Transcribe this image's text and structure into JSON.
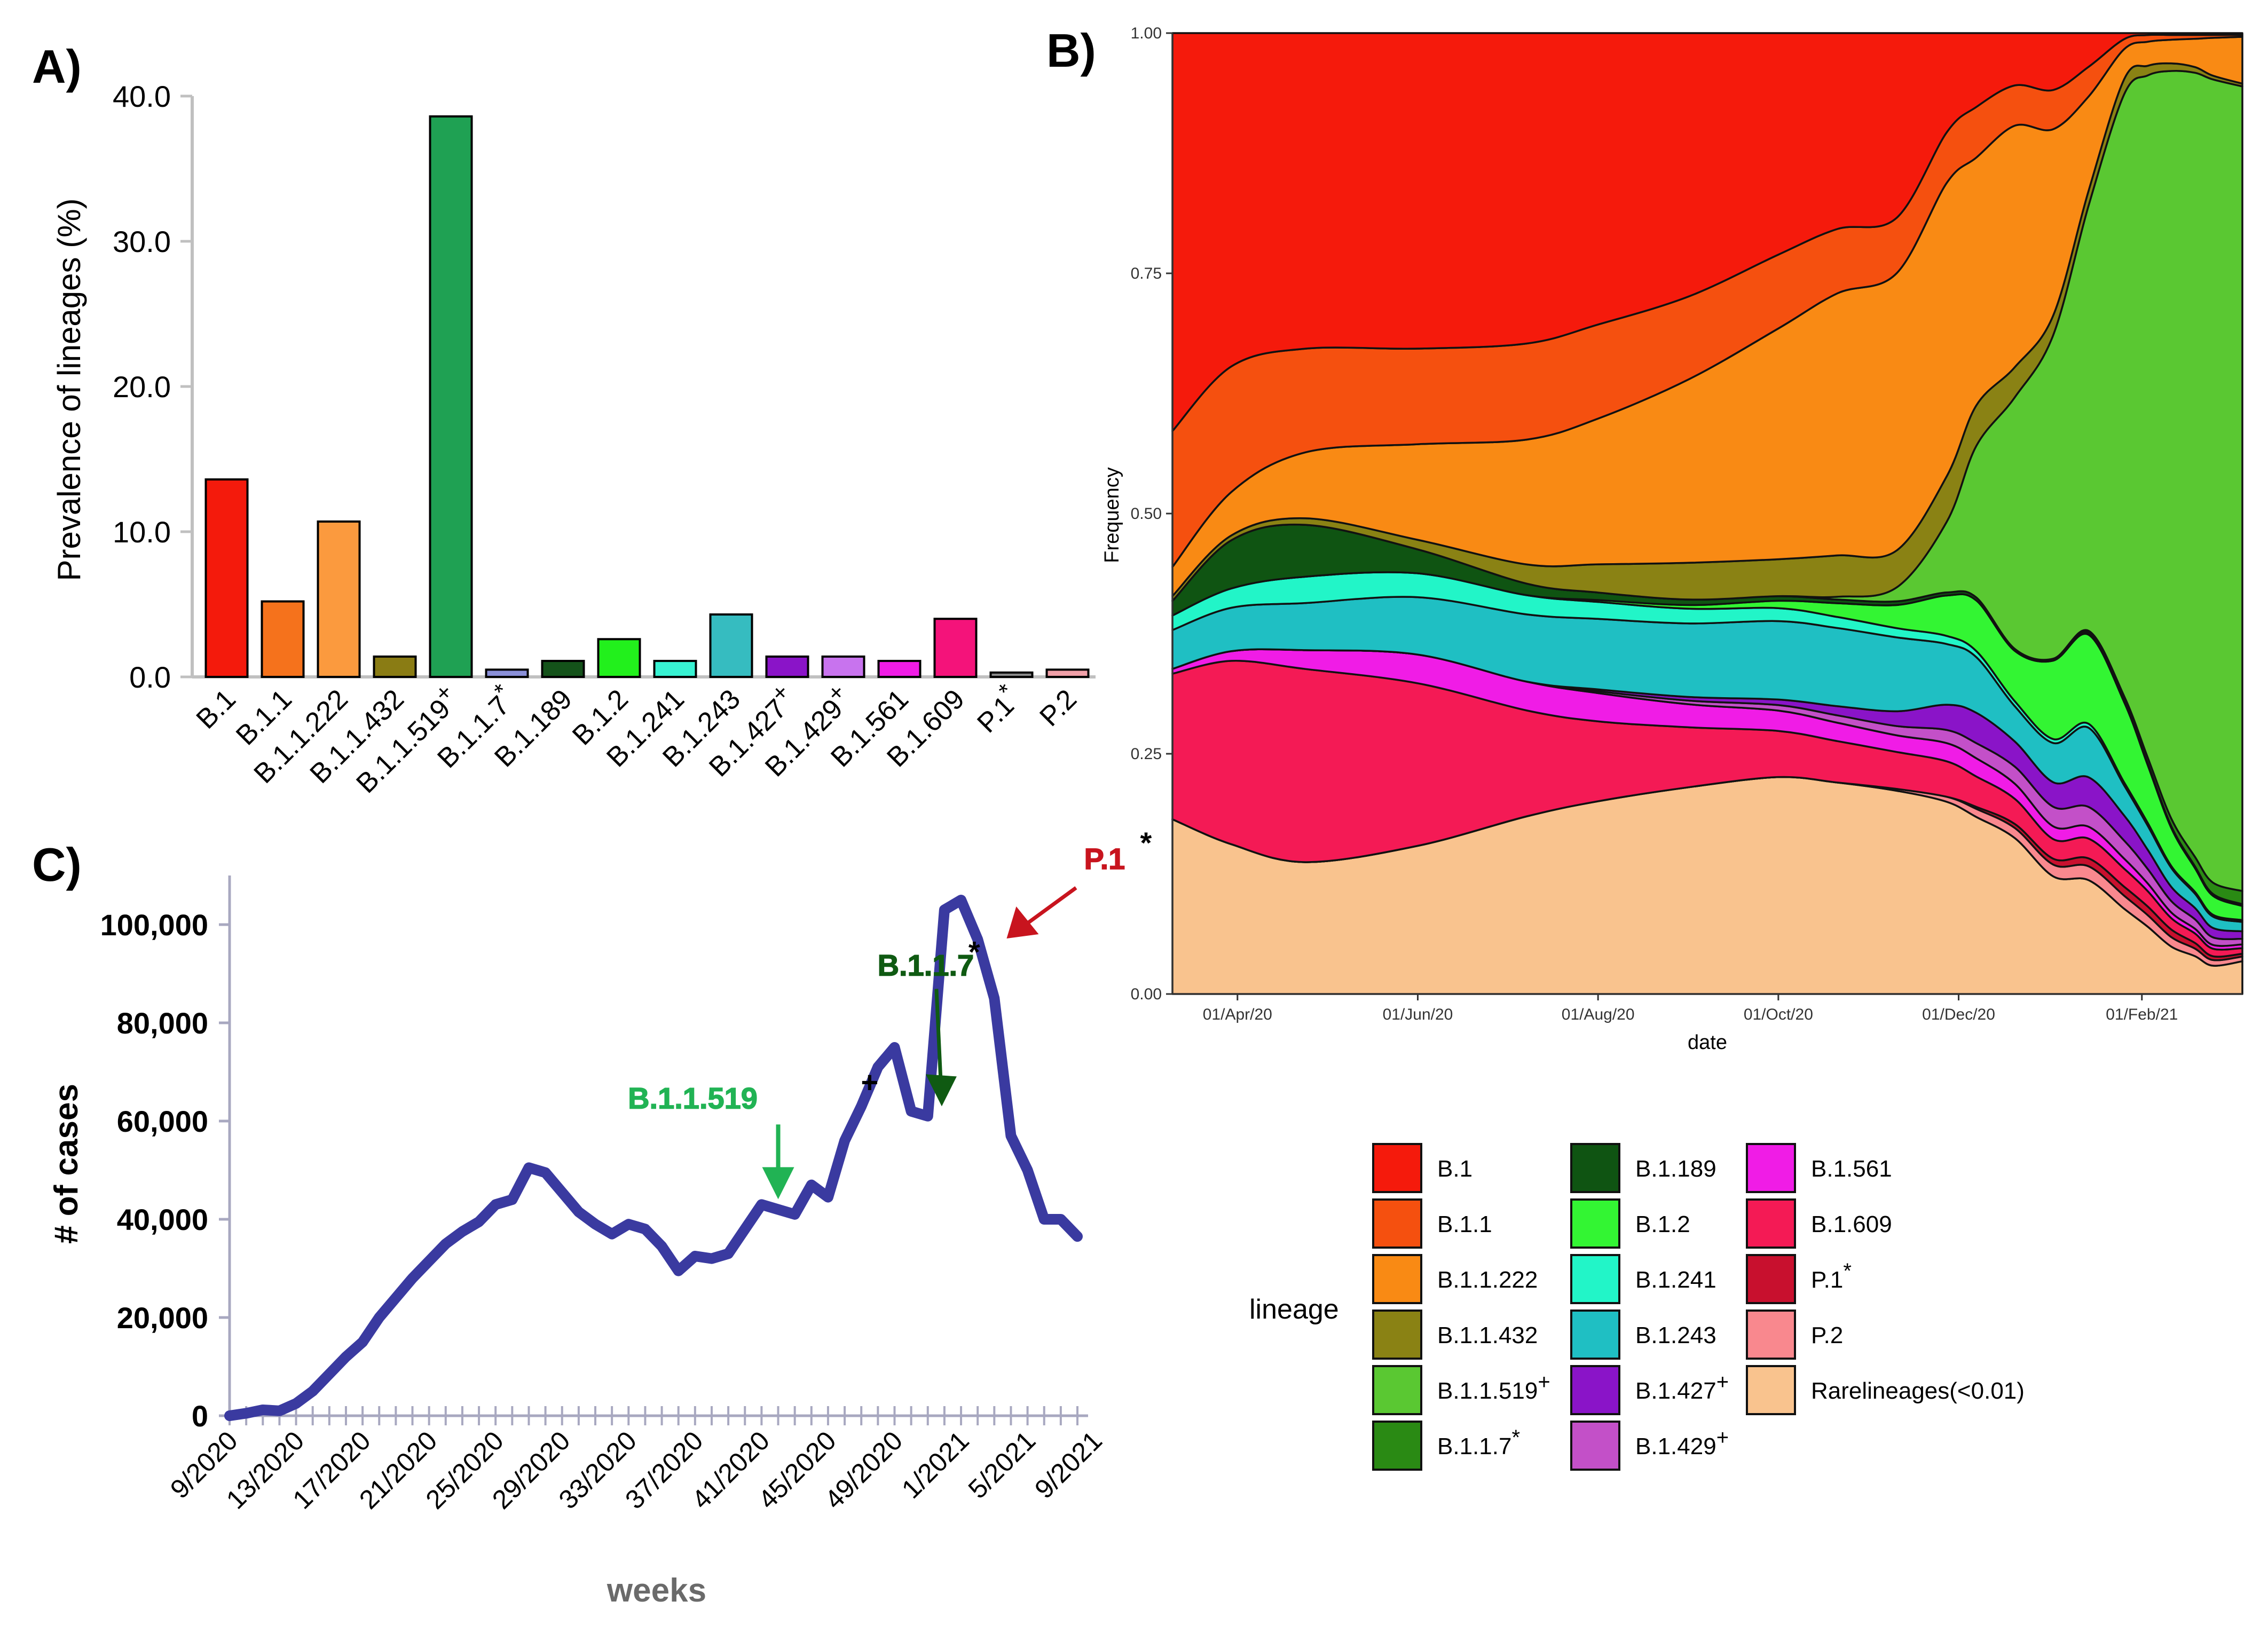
{
  "chart_data": [
    {
      "panel": "A)",
      "type": "bar",
      "ylabel": "Prevalence of lineages (%)",
      "ylim": [
        0,
        40
      ],
      "yticks": [
        "0.0",
        "10.0",
        "20.0",
        "30.0",
        "40.0"
      ],
      "categories": [
        {
          "name": "B.1",
          "mark": ""
        },
        {
          "name": "B.1.1",
          "mark": ""
        },
        {
          "name": "B.1.1.222",
          "mark": ""
        },
        {
          "name": "B.1.1.432",
          "mark": ""
        },
        {
          "name": "B.1.1.519",
          "mark": "+"
        },
        {
          "name": "B.1.1.7",
          "mark": "*"
        },
        {
          "name": "B.1.189",
          "mark": ""
        },
        {
          "name": "B.1.2",
          "mark": ""
        },
        {
          "name": "B.1.241",
          "mark": ""
        },
        {
          "name": "B.1.243",
          "mark": ""
        },
        {
          "name": "B.1.427",
          "mark": "+"
        },
        {
          "name": "B.1.429",
          "mark": "+"
        },
        {
          "name": "B.1.561",
          "mark": ""
        },
        {
          "name": "B.1.609",
          "mark": ""
        },
        {
          "name": "P.1",
          "mark": "*"
        },
        {
          "name": "P.2",
          "mark": ""
        }
      ],
      "values": [
        13.6,
        5.2,
        10.7,
        1.4,
        38.6,
        0.5,
        1.1,
        2.6,
        1.1,
        4.3,
        1.4,
        1.4,
        1.1,
        4.0,
        0.3,
        0.5
      ],
      "colors": [
        "#f41a0c",
        "#f5721c",
        "#fb9a3e",
        "#8a7c14",
        "#1fa153",
        "#8a8fd8",
        "#14521a",
        "#22f01c",
        "#38f2d2",
        "#36bcc0",
        "#8a14c8",
        "#c873ee",
        "#f01ce6",
        "#f4137a",
        "#8a8a8a",
        "#f0a0a8"
      ]
    },
    {
      "panel": "B)",
      "type": "area",
      "stacked": true,
      "xlabel": "date",
      "ylabel": "Frequency",
      "ylim": [
        0,
        1
      ],
      "yticks": [
        "0.00",
        "0.25",
        "0.50",
        "0.75",
        "1.00"
      ],
      "xticks": [
        "01/Apr/20",
        "01/Jun/20",
        "01/Aug/20",
        "01/Oct/20",
        "01/Dec/20",
        "01/Feb/21"
      ],
      "xtick_days": [
        22,
        83,
        144,
        205,
        266,
        328
      ],
      "x_days": [
        0,
        20,
        45,
        83,
        120,
        144,
        175,
        205,
        225,
        245,
        262,
        272,
        285,
        298,
        310,
        322,
        330,
        338,
        346,
        352,
        362
      ],
      "series": [
        {
          "name": "Rarelineages(<0.01)",
          "color": "#f9c38e",
          "values": [
            0.18,
            0.155,
            0.14,
            0.155,
            0.185,
            0.205,
            0.225,
            0.235,
            0.23,
            0.22,
            0.19,
            0.175,
            0.155,
            0.12,
            0.115,
            0.085,
            0.07,
            0.05,
            0.04,
            0.03,
            0.035
          ]
        },
        {
          "name": "P.2",
          "color": "#f9888e",
          "values": [
            0,
            0,
            0,
            0,
            0,
            0,
            0,
            0,
            0,
            0.002,
            0.005,
            0.008,
            0.01,
            0.012,
            0.014,
            0.013,
            0.012,
            0.01,
            0.008,
            0.006,
            0.005
          ]
        },
        {
          "name": "P.1",
          "color": "#c8102e",
          "values": [
            0,
            0,
            0,
            0,
            0,
            0,
            0,
            0,
            0,
            0,
            0,
            0.002,
            0.004,
            0.006,
            0.008,
            0.009,
            0.009,
            0.008,
            0.006,
            0.004,
            0.003
          ]
        },
        {
          "name": "B.1.609",
          "color": "#f41a55",
          "values": [
            0.15,
            0.19,
            0.205,
            0.17,
            0.11,
            0.085,
            0.065,
            0.05,
            0.045,
            0.04,
            0.035,
            0.03,
            0.025,
            0.02,
            0.02,
            0.018,
            0.016,
            0.012,
            0.01,
            0.008,
            0.006
          ]
        },
        {
          "name": "B.1.561",
          "color": "#f01ce6",
          "values": [
            0.005,
            0.01,
            0.02,
            0.03,
            0.03,
            0.03,
            0.025,
            0.022,
            0.02,
            0.018,
            0.018,
            0.018,
            0.015,
            0.013,
            0.012,
            0.01,
            0.008,
            0.006,
            0.005,
            0.004,
            0.004
          ]
        },
        {
          "name": "B.1.429",
          "color": "#c350c8",
          "values": [
            0,
            0,
            0,
            0,
            0,
            0.002,
            0.004,
            0.006,
            0.008,
            0.01,
            0.013,
            0.015,
            0.017,
            0.02,
            0.02,
            0.018,
            0.015,
            0.012,
            0.01,
            0.008,
            0.006
          ]
        },
        {
          "name": "B.1.427",
          "color": "#8a14c8",
          "values": [
            0,
            0,
            0,
            0,
            0,
            0.002,
            0.004,
            0.006,
            0.01,
            0.016,
            0.025,
            0.03,
            0.025,
            0.025,
            0.03,
            0.025,
            0.02,
            0.015,
            0.012,
            0.01,
            0.008
          ]
        },
        {
          "name": "B.1.243",
          "color": "#1fbfc3",
          "values": [
            0.04,
            0.045,
            0.05,
            0.06,
            0.07,
            0.075,
            0.08,
            0.085,
            0.085,
            0.08,
            0.06,
            0.055,
            0.035,
            0.04,
            0.05,
            0.03,
            0.025,
            0.02,
            0.015,
            0.012,
            0.01
          ]
        },
        {
          "name": "B.1.241",
          "color": "#22f5c8",
          "values": [
            0.015,
            0.02,
            0.028,
            0.025,
            0.02,
            0.018,
            0.016,
            0.014,
            0.012,
            0.01,
            0.008,
            0.006,
            0.005,
            0.004,
            0.004,
            0.003,
            0.003,
            0.002,
            0.002,
            0.002,
            0.002
          ]
        },
        {
          "name": "B.1.2",
          "color": "#33f533",
          "values": [
            0,
            0,
            0,
            0,
            0,
            0.002,
            0.004,
            0.008,
            0.015,
            0.025,
            0.04,
            0.05,
            0.05,
            0.08,
            0.09,
            0.08,
            0.06,
            0.04,
            0.025,
            0.02,
            0.015
          ]
        },
        {
          "name": "B.1.189",
          "color": "#0f5412",
          "values": [
            0.015,
            0.05,
            0.055,
            0.025,
            0.012,
            0.008,
            0.006,
            0.005,
            0.004,
            0.004,
            0.003,
            0.003,
            0.002,
            0.002,
            0.002,
            0.002,
            0.002,
            0.002,
            0.002,
            0.002,
            0.002
          ]
        },
        {
          "name": "B.1.1.7",
          "color": "#2a8a14",
          "values": [
            0,
            0,
            0,
            0,
            0,
            0,
            0,
            0,
            0,
            0,
            0,
            0,
            0,
            0,
            0.002,
            0.004,
            0.006,
            0.008,
            0.01,
            0.012,
            0.014
          ]
        },
        {
          "name": "B.1.1.519",
          "color": "#5ac832",
          "values": [
            0,
            0,
            0,
            0,
            0,
            0,
            0,
            0,
            0.003,
            0.015,
            0.07,
            0.15,
            0.25,
            0.33,
            0.43,
            0.6,
            0.71,
            0.79,
            0.83,
            0.85,
            0.86
          ]
        },
        {
          "name": "B.1.1.432",
          "color": "#8a8214",
          "values": [
            0.005,
            0.005,
            0.007,
            0.01,
            0.02,
            0.03,
            0.04,
            0.04,
            0.045,
            0.04,
            0.045,
            0.04,
            0.03,
            0.02,
            0.015,
            0.015,
            0.01,
            0.008,
            0.006,
            0.004,
            0.003
          ]
        },
        {
          "name": "B.1.1.222",
          "color": "#f98a14",
          "values": [
            0.03,
            0.045,
            0.07,
            0.1,
            0.13,
            0.155,
            0.2,
            0.25,
            0.285,
            0.3,
            0.29,
            0.245,
            0.24,
            0.19,
            0.095,
            0.03,
            0.025,
            0.025,
            0.03,
            0.04,
            0.05
          ]
        },
        {
          "name": "B.1.1",
          "color": "#f5500f",
          "values": [
            0.14,
            0.13,
            0.11,
            0.1,
            0.1,
            0.1,
            0.09,
            0.08,
            0.07,
            0.06,
            0.05,
            0.05,
            0.04,
            0.04,
            0.03,
            0.01,
            0.007,
            0.005,
            0.004,
            0.003,
            0.002
          ]
        },
        {
          "name": "B.1",
          "color": "#f51a0c",
          "values": [
            0.41,
            0.345,
            0.335,
            0.33,
            0.323,
            0.31,
            0.286,
            0.24,
            0.213,
            0.2,
            0.098,
            0.073,
            0.052,
            0.058,
            0.034,
            0.006,
            0.002,
            0.002,
            0.002,
            0.002,
            0.002
          ]
        }
      ],
      "legend": {
        "title": "lineage",
        "columns": [
          [
            {
              "label": "B.1",
              "mark": "",
              "color": "#f51a0c"
            },
            {
              "label": "B.1.1",
              "mark": "",
              "color": "#f5500f"
            },
            {
              "label": "B.1.1.222",
              "mark": "",
              "color": "#f98a14"
            },
            {
              "label": "B.1.1.432",
              "mark": "",
              "color": "#8a8214"
            },
            {
              "label": "B.1.1.519",
              "mark": "+",
              "color": "#5ac832"
            },
            {
              "label": "B.1.1.7",
              "mark": "*",
              "color": "#2a8a14"
            }
          ],
          [
            {
              "label": "B.1.189",
              "mark": "",
              "color": "#0f5412"
            },
            {
              "label": "B.1.2",
              "mark": "",
              "color": "#33f533"
            },
            {
              "label": "B.1.241",
              "mark": "",
              "color": "#22f5c8"
            },
            {
              "label": "B.1.243",
              "mark": "",
              "color": "#1fbfc3"
            },
            {
              "label": "B.1.427",
              "mark": "+",
              "color": "#8a14c8"
            },
            {
              "label": "B.1.429",
              "mark": "+",
              "color": "#c350c8"
            }
          ],
          [
            {
              "label": "B.1.561",
              "mark": "",
              "color": "#f01ce6"
            },
            {
              "label": "B.1.609",
              "mark": "",
              "color": "#f41a55"
            },
            {
              "label": "P.1",
              "mark": "*",
              "color": "#c8102e"
            },
            {
              "label": "P.2",
              "mark": "",
              "color": "#f9888e"
            },
            {
              "label": "Rarelineages(<0.01)",
              "mark": "",
              "color": "#f9c38e"
            }
          ]
        ]
      }
    },
    {
      "panel": "C)",
      "type": "line",
      "xlabel": "weeks",
      "ylabel": "# of cases",
      "ylim": [
        0,
        110000
      ],
      "yticks": [
        {
          "value": 0,
          "label": "0"
        },
        {
          "value": 20000,
          "label": "20,000"
        },
        {
          "value": 40000,
          "label": "40,000"
        },
        {
          "value": 60000,
          "label": "60,000"
        },
        {
          "value": 80000,
          "label": "80,000"
        },
        {
          "value": 100000,
          "label": "100,000"
        }
      ],
      "xticks": [
        {
          "index": 0,
          "label": "9/2020"
        },
        {
          "index": 4,
          "label": "13/2020"
        },
        {
          "index": 8,
          "label": "17/2020"
        },
        {
          "index": 12,
          "label": "21/2020"
        },
        {
          "index": 16,
          "label": "25/2020"
        },
        {
          "index": 20,
          "label": "29/2020"
        },
        {
          "index": 24,
          "label": "33/2020"
        },
        {
          "index": 28,
          "label": "37/2020"
        },
        {
          "index": 32,
          "label": "41/2020"
        },
        {
          "index": 36,
          "label": "45/2020"
        },
        {
          "index": 40,
          "label": "49/2020"
        },
        {
          "index": 44,
          "label": "1/2021"
        },
        {
          "index": 48,
          "label": "5/2021"
        },
        {
          "index": 52,
          "label": "9/2021"
        }
      ],
      "series": [
        {
          "name": "cases",
          "color": "#3a3aa0",
          "values": [
            0,
            500,
            1200,
            1000,
            2500,
            5000,
            8500,
            12000,
            15000,
            20000,
            24000,
            28000,
            31500,
            35000,
            37500,
            39500,
            43000,
            44000,
            50500,
            49500,
            45500,
            41500,
            39000,
            37000,
            39000,
            38000,
            34500,
            29500,
            32500,
            32000,
            33000,
            38000,
            43000,
            42000,
            41000,
            47000,
            44500,
            56000,
            63000,
            71000,
            75000,
            62000,
            61000,
            103000,
            105000,
            97000,
            85000,
            57000,
            50000,
            40000,
            40000,
            36500
          ]
        }
      ],
      "annotations": [
        {
          "label": "B.1.1.519",
          "mark": "+",
          "index": 33,
          "value": 43000,
          "color": "#21b354"
        },
        {
          "label": "B.1.1.7",
          "mark": "*",
          "index": 43,
          "value": 63000,
          "color": "#0f5a12"
        },
        {
          "label": "P.1",
          "mark": "*",
          "index": 47,
          "value": 95000,
          "color": "#c8141e"
        }
      ]
    }
  ]
}
